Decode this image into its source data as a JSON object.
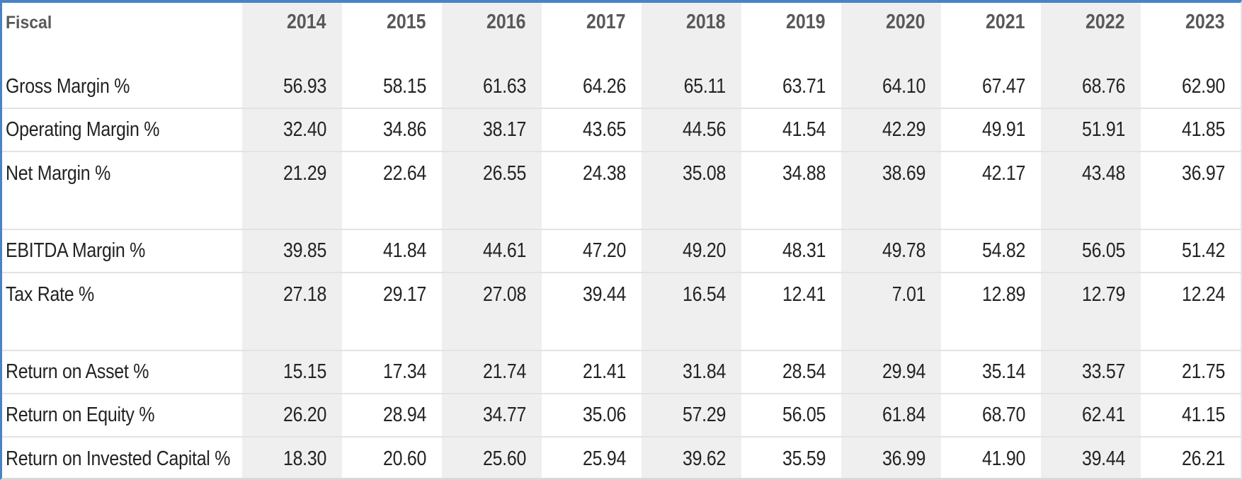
{
  "table": {
    "header": {
      "label": "Fiscal",
      "years": [
        "2014",
        "2015",
        "2016",
        "2017",
        "2018",
        "2019",
        "2020",
        "2021",
        "2022",
        "2023"
      ]
    },
    "groups": [
      {
        "rows": [
          {
            "label": "Gross Margin %",
            "values": [
              "56.93",
              "58.15",
              "61.63",
              "64.26",
              "65.11",
              "63.71",
              "64.10",
              "67.47",
              "68.76",
              "62.90"
            ]
          },
          {
            "label": "Operating Margin %",
            "values": [
              "32.40",
              "34.86",
              "38.17",
              "43.65",
              "44.56",
              "41.54",
              "42.29",
              "49.91",
              "51.91",
              "41.85"
            ]
          },
          {
            "label": "Net Margin %",
            "values": [
              "21.29",
              "22.64",
              "26.55",
              "24.38",
              "35.08",
              "34.88",
              "38.69",
              "42.17",
              "43.48",
              "36.97"
            ]
          }
        ]
      },
      {
        "rows": [
          {
            "label": "EBITDA Margin %",
            "values": [
              "39.85",
              "41.84",
              "44.61",
              "47.20",
              "49.20",
              "48.31",
              "49.78",
              "54.82",
              "56.05",
              "51.42"
            ]
          },
          {
            "label": "Tax Rate %",
            "values": [
              "27.18",
              "29.17",
              "27.08",
              "39.44",
              "16.54",
              "12.41",
              "7.01",
              "12.89",
              "12.79",
              "12.24"
            ]
          }
        ]
      },
      {
        "rows": [
          {
            "label": "Return on Asset %",
            "values": [
              "15.15",
              "17.34",
              "21.74",
              "21.41",
              "31.84",
              "28.54",
              "29.94",
              "35.14",
              "33.57",
              "21.75"
            ]
          },
          {
            "label": "Return on Equity %",
            "values": [
              "26.20",
              "28.94",
              "34.77",
              "35.06",
              "57.29",
              "56.05",
              "61.84",
              "68.70",
              "62.41",
              "41.15"
            ]
          },
          {
            "label": "Return on Invested Capital %",
            "values": [
              "18.30",
              "20.60",
              "25.60",
              "25.94",
              "39.62",
              "35.59",
              "36.99",
              "41.90",
              "39.44",
              "26.21"
            ]
          }
        ]
      }
    ]
  },
  "colors": {
    "accent_blue": "#4a82c6",
    "column_shade": "#f0efef",
    "separator": "#e4e3e3",
    "header_text": "#58595b",
    "body_text": "#232323",
    "bottom_border": "#d8d8d8"
  }
}
